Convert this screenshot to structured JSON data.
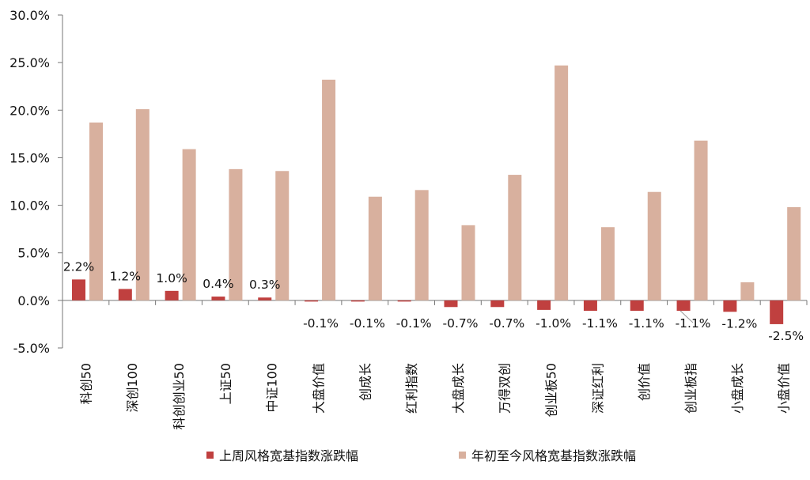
{
  "chart_data": {
    "type": "bar",
    "categories": [
      "科创50",
      "深创100",
      "科创创业50",
      "上证50",
      "中证100",
      "大盘价值",
      "创成长",
      "红利指数",
      "大盘成长",
      "万得双创",
      "创业板50",
      "深证红利",
      "创价值",
      "创业板指",
      "小盘成长",
      "小盘价值"
    ],
    "series": [
      {
        "name": "上周风格宽基指数涨跌幅",
        "color": "#c0403f",
        "values": [
          2.2,
          1.2,
          1.0,
          0.4,
          0.3,
          -0.1,
          -0.1,
          -0.1,
          -0.7,
          -0.7,
          -1.0,
          -1.1,
          -1.1,
          -1.1,
          -1.2,
          -2.5
        ],
        "labels": [
          "2.2%",
          "1.2%",
          "1.0%",
          "0.4%",
          "0.3%",
          "-0.1%",
          "-0.1%",
          "-0.1%",
          "-0.7%",
          "-0.7%",
          "-1.0%",
          "-1.1%",
          "-1.1%",
          "-1.1%",
          "-1.2%",
          "-2.5%"
        ]
      },
      {
        "name": "年初至今风格宽基指数涨跌幅",
        "color": "#d8b09e",
        "values": [
          18.7,
          20.1,
          15.9,
          13.8,
          13.6,
          23.2,
          10.9,
          11.6,
          7.9,
          13.2,
          24.7,
          7.7,
          11.4,
          16.8,
          1.9,
          9.8
        ]
      }
    ],
    "y_ticks": [
      "30.0%",
      "25.0%",
      "20.0%",
      "15.0%",
      "10.0%",
      "5.0%",
      "0.0%",
      "-5.0%"
    ],
    "ylim": [
      -5,
      30
    ],
    "grid": false,
    "legend": "bottom"
  }
}
